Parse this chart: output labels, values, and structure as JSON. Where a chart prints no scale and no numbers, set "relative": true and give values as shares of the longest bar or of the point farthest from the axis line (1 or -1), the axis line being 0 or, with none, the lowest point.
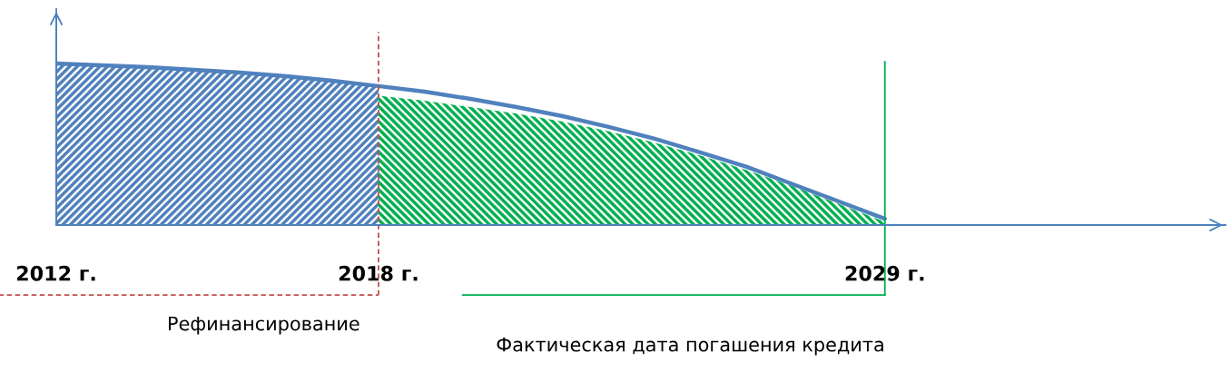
{
  "chart_data": {
    "type": "area",
    "relative": true,
    "categories": [
      "2012 г.",
      null,
      null,
      null,
      null,
      null,
      null,
      "2018 г.",
      null,
      null,
      null,
      null,
      null,
      null,
      null,
      null,
      null,
      null,
      "2029 г."
    ],
    "series": [
      {
        "color": "#4f81bd",
        "values": [
          1.0,
          0.989,
          0.978,
          0.961,
          0.944,
          0.921,
          0.893,
          0.86,
          null,
          null,
          null,
          null,
          null,
          null,
          null,
          null,
          null,
          null,
          null
        ]
      },
      {
        "color": "#00b050",
        "values": [
          null,
          null,
          null,
          null,
          null,
          null,
          null,
          0.8,
          0.77,
          0.73,
          0.69,
          0.64,
          0.58,
          0.51,
          0.43,
          0.34,
          0.24,
          0.13,
          0.02
        ]
      },
      {
        "type": "line",
        "color": "#4f81bd",
        "values": [
          1.0,
          0.989,
          0.978,
          0.961,
          0.944,
          0.921,
          0.893,
          0.86,
          0.826,
          0.781,
          0.73,
          0.674,
          0.607,
          0.534,
          0.449,
          0.36,
          0.253,
          0.146,
          0.039
        ]
      }
    ],
    "ref_lines": [
      {
        "axis": "x",
        "value": "2018 г.",
        "label": "Рефинансирование",
        "color": "#c0504d",
        "line_style": "dashed"
      },
      {
        "axis": "x",
        "value": "2029 г.",
        "label": "Фактическая дата погашения кредита",
        "color": "#00b050",
        "line_style": "solid"
      }
    ],
    "grid": false,
    "legend": false
  }
}
